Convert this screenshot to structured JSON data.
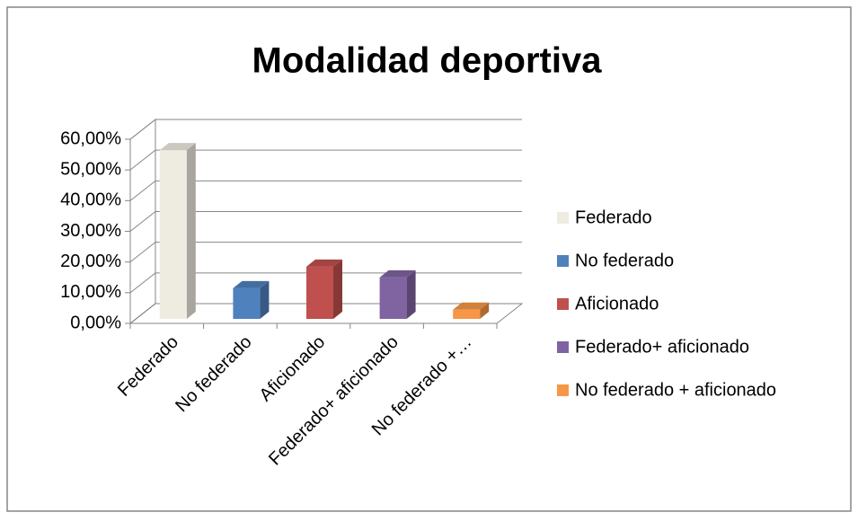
{
  "chart_data": {
    "type": "bar3d",
    "title": "Modalidad deportiva",
    "categories": [
      "Federado",
      "No federado",
      "Aficionado",
      "Federado+ aficionado",
      "No federado +…"
    ],
    "values": [
      55,
      10,
      17,
      13.5,
      3
    ],
    "colors": [
      "#eeece1",
      "#4f81bd",
      "#c0504d",
      "#8064a2",
      "#f79646"
    ],
    "legend": [
      "Federado",
      "No federado",
      "Aficionado",
      "Federado+ aficionado",
      "No federado + aficionado"
    ],
    "ylim": [
      0,
      60
    ],
    "yticks": [
      {
        "value": 0,
        "label": "0,00%"
      },
      {
        "value": 10,
        "label": "10,00%"
      },
      {
        "value": 20,
        "label": "20,00%"
      },
      {
        "value": 30,
        "label": "30,00%"
      },
      {
        "value": 40,
        "label": "40,00%"
      },
      {
        "value": 50,
        "label": "50,00%"
      },
      {
        "value": 60,
        "label": "60,00%"
      }
    ],
    "grid": true,
    "legend_position": "right"
  }
}
